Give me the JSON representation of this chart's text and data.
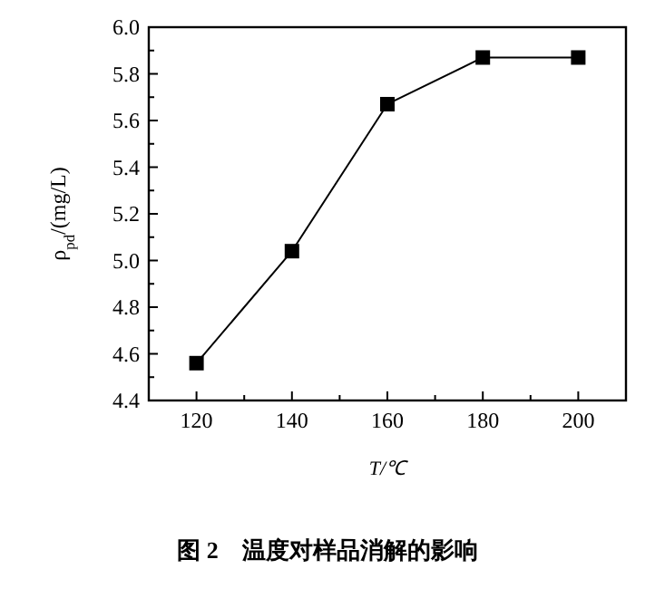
{
  "chart_data": {
    "type": "line",
    "title": "图 2　温度对样品消解的影响",
    "xlabel": "T/℃",
    "ylabel": "ρ$_{pd}$/(mg/L)",
    "x": [
      120,
      140,
      160,
      180,
      200
    ],
    "series": [
      {
        "color": "#000000",
        "values": [
          4.56,
          5.04,
          5.67,
          5.87,
          5.87
        ]
      }
    ],
    "xlim": [
      110,
      210
    ],
    "ylim": [
      4.4,
      6.0
    ],
    "xticks": [
      120,
      140,
      160,
      180,
      200
    ],
    "yticks": [
      {
        "value": 4.4,
        "label": "4.4"
      },
      {
        "value": 4.6,
        "label": "4.6"
      },
      {
        "value": 4.8,
        "label": "4.8"
      },
      {
        "value": 5.0,
        "label": "5.0"
      },
      {
        "value": 5.2,
        "label": "5.2"
      },
      {
        "value": 5.4,
        "label": "5.4"
      },
      {
        "value": 5.6,
        "label": "5.6"
      },
      {
        "value": 5.8,
        "label": "5.8"
      },
      {
        "value": 6.0,
        "label": "6.0"
      }
    ],
    "marker": "square",
    "line_style": "solid",
    "grid": false
  }
}
